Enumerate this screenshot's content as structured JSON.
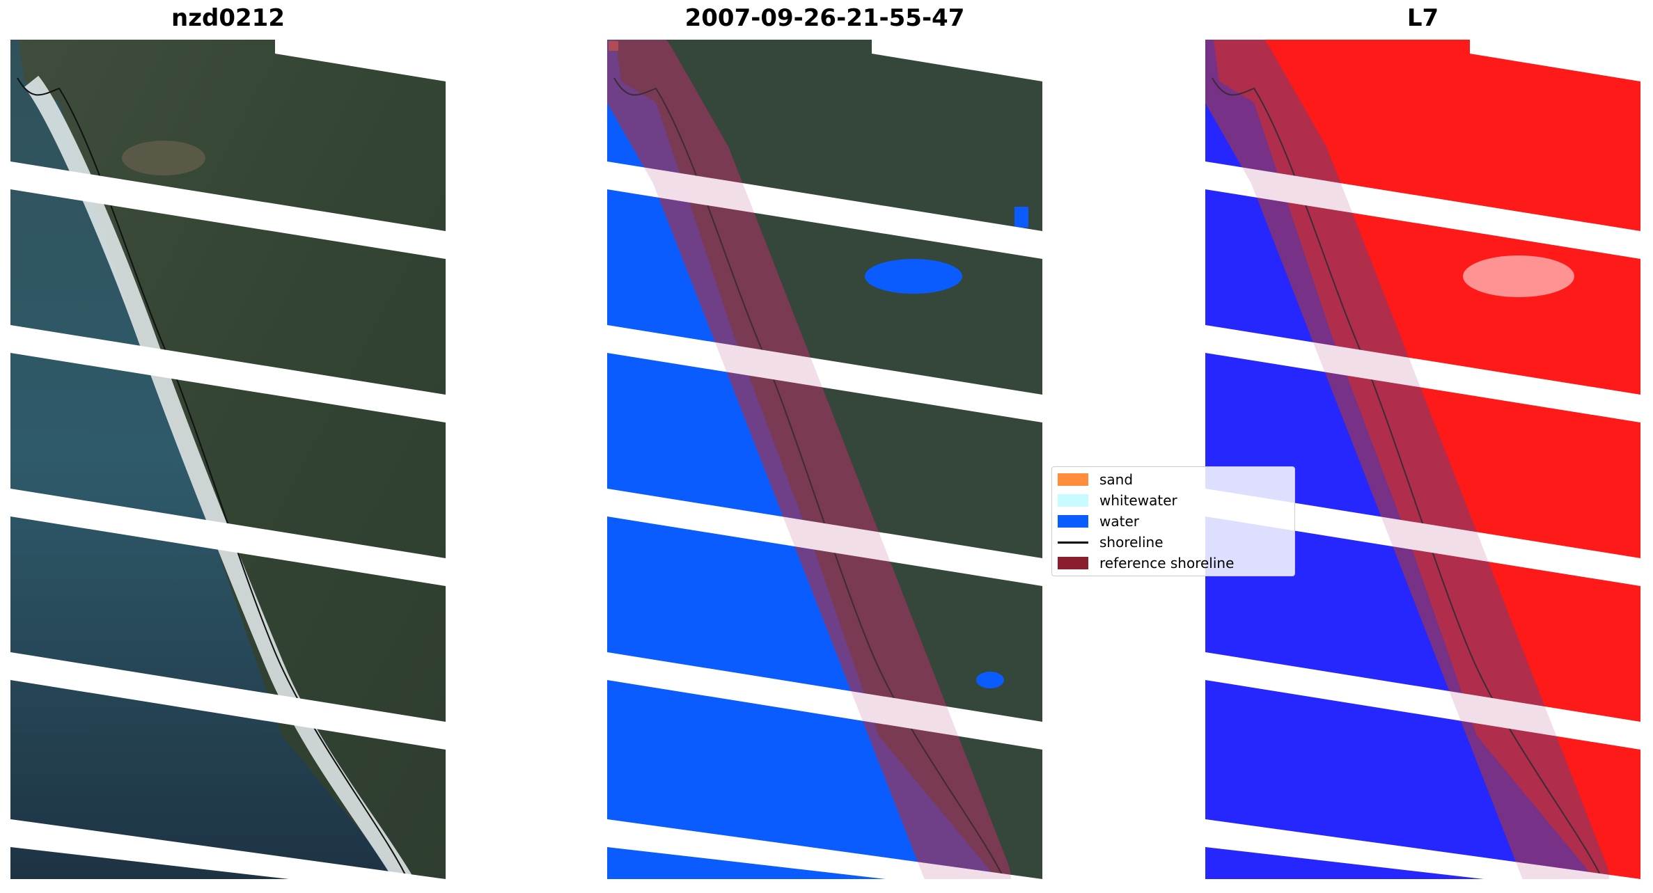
{
  "panels": [
    {
      "title": "nzd0212"
    },
    {
      "title": "2007-09-26-21-55-47"
    },
    {
      "title": "L7"
    }
  ],
  "legend": {
    "items": [
      {
        "label": "sand",
        "color": "#ff8c3a"
      },
      {
        "label": "whitewater",
        "color": "#c8fbff"
      },
      {
        "label": "water",
        "color": "#0a5cff"
      },
      {
        "label": "shoreline",
        "color": "#000000"
      },
      {
        "label": "reference shoreline",
        "color": "#8b1e2e"
      }
    ]
  },
  "colors": {
    "land_rgb": "#3b4a3a",
    "sea_rgb": "#2e4f5c",
    "surf": "#e8eef0",
    "index_land": "#ff1a1a",
    "index_water": "#2626ff",
    "buffer": "#7a1236",
    "scanline_gap": "#ffffff"
  }
}
